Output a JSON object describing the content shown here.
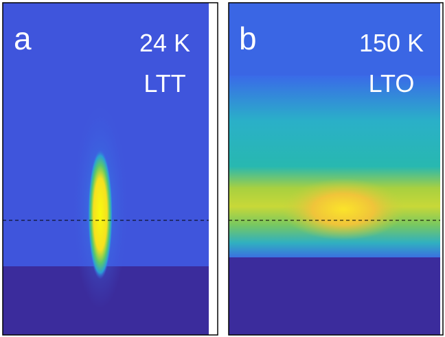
{
  "panels": [
    {
      "letter": "a",
      "temperature": "24 K",
      "phase": "LTT"
    },
    {
      "letter": "b",
      "temperature": "150 K",
      "phase": "LTO"
    }
  ]
}
